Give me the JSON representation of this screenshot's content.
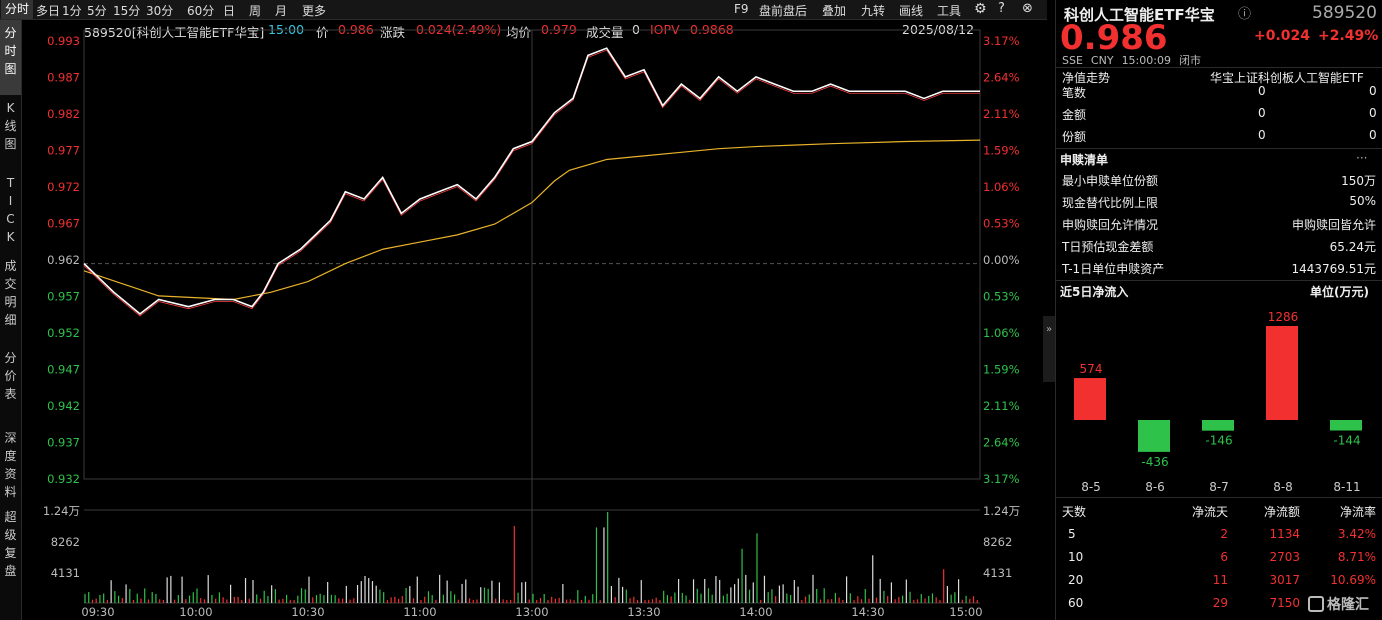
{
  "toolbar": {
    "tabs": [
      "分时",
      "多日",
      "1分",
      "5分",
      "15分",
      "30分",
      "60分",
      "日",
      "周",
      "月",
      "更多"
    ],
    "right": [
      "F9",
      "盘前盘后",
      "叠加",
      "九转",
      "画线",
      "工具"
    ]
  },
  "sidebar": [
    "分时图",
    "K线图",
    "TICK",
    "成交明细",
    "分价表",
    "深度资料",
    "超级复盘"
  ],
  "info": {
    "code_name": "589520[科创人工智能ETF华宝]",
    "time": "15:00",
    "price_label": "价",
    "price": "0.986",
    "change_label": "涨跌",
    "change": "0.024(2.49%)",
    "avg_label": "均价",
    "avg": "0.979",
    "vol_label": "成交量",
    "vol": "0",
    "iopv_label": "IOPV",
    "iopv": "0.9868",
    "date": "2025/08/12"
  },
  "axis": {
    "prices": [
      "0.993",
      "0.987",
      "0.982",
      "0.977",
      "0.972",
      "0.967",
      "0.962",
      "0.957",
      "0.952",
      "0.947",
      "0.942",
      "0.937",
      "0.932"
    ],
    "pcts": [
      "3.17%",
      "2.64%",
      "2.11%",
      "1.59%",
      "1.06%",
      "0.53%",
      "0.00%",
      "0.53%",
      "1.06%",
      "1.59%",
      "2.11%",
      "2.64%",
      "3.17%"
    ],
    "vol": [
      "1.24万",
      "8262",
      "4131"
    ],
    "times": [
      "09:30",
      "10:00",
      "10:30",
      "11:00",
      "13:00",
      "13:30",
      "14:00",
      "14:30",
      "15:00"
    ]
  },
  "chart_data": {
    "type": "line",
    "prev_close": 0.962,
    "ylim": [
      0.932,
      0.993
    ],
    "colors": {
      "price": "#ffffff",
      "avg": "#e8b32a",
      "iopv": "#ff4040"
    },
    "price": [
      [
        0,
        0.962
      ],
      [
        8,
        0.958
      ],
      [
        15,
        0.955
      ],
      [
        20,
        0.957
      ],
      [
        28,
        0.956
      ],
      [
        35,
        0.957
      ],
      [
        40,
        0.957
      ],
      [
        45,
        0.956
      ],
      [
        48,
        0.958
      ],
      [
        52,
        0.962
      ],
      [
        58,
        0.964
      ],
      [
        62,
        0.966
      ],
      [
        66,
        0.968
      ],
      [
        70,
        0.972
      ],
      [
        75,
        0.971
      ],
      [
        80,
        0.974
      ],
      [
        85,
        0.969
      ],
      [
        90,
        0.971
      ],
      [
        95,
        0.972
      ],
      [
        100,
        0.973
      ],
      [
        105,
        0.971
      ],
      [
        110,
        0.974
      ],
      [
        115,
        0.978
      ],
      [
        120,
        0.979
      ],
      [
        126,
        0.983
      ],
      [
        131,
        0.985
      ],
      [
        135,
        0.991
      ],
      [
        140,
        0.992
      ],
      [
        145,
        0.988
      ],
      [
        150,
        0.989
      ],
      [
        155,
        0.984
      ],
      [
        160,
        0.987
      ],
      [
        165,
        0.985
      ],
      [
        170,
        0.988
      ],
      [
        175,
        0.986
      ],
      [
        180,
        0.988
      ],
      [
        185,
        0.987
      ],
      [
        190,
        0.986
      ],
      [
        195,
        0.986
      ],
      [
        200,
        0.987
      ],
      [
        205,
        0.986
      ],
      [
        210,
        0.986
      ],
      [
        215,
        0.986
      ],
      [
        220,
        0.986
      ],
      [
        225,
        0.985
      ],
      [
        230,
        0.986
      ],
      [
        235,
        0.986
      ],
      [
        240,
        0.986
      ]
    ],
    "avg": [
      [
        0,
        0.961
      ],
      [
        20,
        0.9575
      ],
      [
        40,
        0.957
      ],
      [
        50,
        0.958
      ],
      [
        60,
        0.9595
      ],
      [
        70,
        0.962
      ],
      [
        80,
        0.964
      ],
      [
        90,
        0.965
      ],
      [
        100,
        0.966
      ],
      [
        110,
        0.9675
      ],
      [
        120,
        0.9705
      ],
      [
        126,
        0.9735
      ],
      [
        130,
        0.975
      ],
      [
        140,
        0.9765
      ],
      [
        150,
        0.977
      ],
      [
        160,
        0.9775
      ],
      [
        170,
        0.978
      ],
      [
        180,
        0.9783
      ],
      [
        190,
        0.9785
      ],
      [
        200,
        0.9787
      ],
      [
        220,
        0.979
      ],
      [
        240,
        0.9792
      ]
    ],
    "volume": [
      {
        "t": 115,
        "v": 10500
      },
      {
        "t": 140,
        "v": 12400
      },
      {
        "t": 139,
        "v": 10300
      },
      {
        "t": 137,
        "v": 10300
      },
      {
        "t": 180,
        "v": 9500
      },
      {
        "t": 176,
        "v": 7400
      },
      {
        "t": 211,
        "v": 6500
      },
      {
        "t": 230,
        "v": 4600
      }
    ]
  },
  "right": {
    "title": "科创人工智能ETF华宝",
    "code": "589520",
    "price": "0.986",
    "change": "+0.024",
    "pct": "+2.49%",
    "meta": [
      "SSE",
      "CNY",
      "15:00:09",
      "闭市"
    ],
    "nav_label": "净值走势",
    "index_name": "华宝上证科创板人工智能ETF",
    "rows1": [
      [
        "笔数",
        "0",
        "0"
      ],
      [
        "金额",
        "0",
        "0"
      ],
      [
        "份额",
        "0",
        "0"
      ]
    ],
    "list_title": "申赎清单",
    "list_more": "···",
    "rows2": [
      [
        "最小申赎单位份额",
        "150万"
      ],
      [
        "现金替代比例上限",
        "50%"
      ],
      [
        "申购赎回允许情况",
        "申购赎回皆允许"
      ],
      [
        "T日预估现金差额",
        "65.24元"
      ],
      [
        "T-1日单位申赎资产",
        "1443769.51元"
      ]
    ],
    "flow_title": "近5日净流入",
    "flow_unit": "单位(万元)",
    "flow": [
      {
        "d": "8-5",
        "v": 574
      },
      {
        "d": "8-6",
        "v": -436
      },
      {
        "d": "8-7",
        "v": -146
      },
      {
        "d": "8-8",
        "v": 1286
      },
      {
        "d": "8-11",
        "v": -144
      }
    ],
    "stats_head": [
      "天数",
      "净流天",
      "净流额",
      "净流率"
    ],
    "stats": [
      [
        "5",
        "2",
        "1134",
        "3.42%"
      ],
      [
        "10",
        "6",
        "2703",
        "8.71%"
      ],
      [
        "20",
        "11",
        "3017",
        "10.69%"
      ],
      [
        "60",
        "29",
        "7150",
        ""
      ]
    ],
    "logo": "格隆汇"
  }
}
